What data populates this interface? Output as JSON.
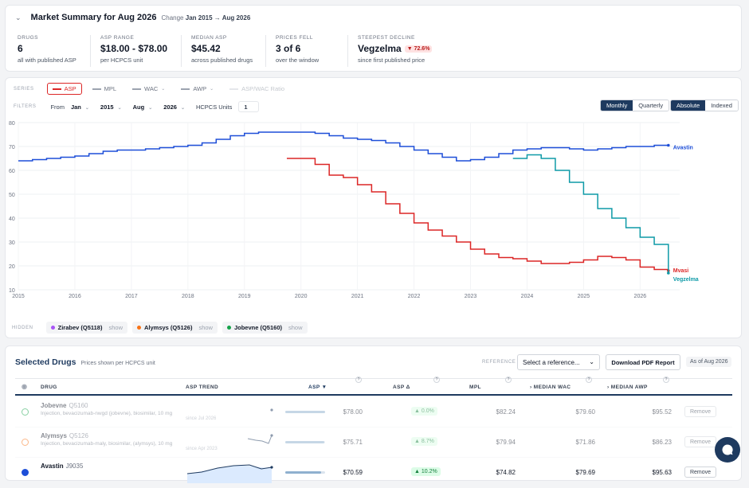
{
  "summary": {
    "title": "Market Summary for Aug 2026",
    "change_prefix": "Change",
    "change_range": "Jan 2015 → Aug 2026",
    "stats": [
      {
        "label": "DRUGS",
        "value": "6",
        "sub": "all with published ASP"
      },
      {
        "label": "ASP RANGE",
        "value": "$18.00 - $78.00",
        "sub": "per HCPCS unit"
      },
      {
        "label": "MEDIAN ASP",
        "value": "$45.42",
        "sub": "across published drugs"
      },
      {
        "label": "PRICES FELL",
        "value": "3 of 6",
        "sub": "over the window"
      },
      {
        "label": "STEEPEST DECLINE",
        "value": "Vegzelma",
        "badge": "▼ 72.6%",
        "sub": "since first published price"
      }
    ]
  },
  "series_bar": {
    "label": "SERIES",
    "items": [
      {
        "label": "ASP",
        "color": "#dc2626",
        "active": true
      },
      {
        "label": "MPL",
        "color": "#9ca3af",
        "active": false
      },
      {
        "label": "WAC",
        "color": "#9ca3af",
        "active": false
      },
      {
        "label": "AWP",
        "color": "#9ca3af",
        "active": false
      },
      {
        "label": "ASP/WAC Ratio",
        "color": "#d1d5db",
        "active": false
      }
    ]
  },
  "filters": {
    "label": "FILTERS",
    "from_label": "From",
    "from_month": "Jan",
    "from_year": "2015",
    "to_month": "Aug",
    "to_year": "2026",
    "units_label": "HCPCS Units",
    "units_value": "1",
    "granularity": [
      "Monthly",
      "Quarterly"
    ],
    "mode": [
      "Absolute",
      "Indexed"
    ]
  },
  "hidden": {
    "label": "HIDDEN",
    "items": [
      {
        "label": "Zirabev (Q5118)",
        "color": "#a855f7",
        "action": "show"
      },
      {
        "label": "Alymsys (Q5126)",
        "color": "#f97316",
        "action": "show"
      },
      {
        "label": "Jobevne (Q5160)",
        "color": "#16a34a",
        "action": "show"
      }
    ]
  },
  "chart_data": {
    "type": "line",
    "yticks": [
      10,
      20,
      30,
      40,
      50,
      60,
      70,
      80
    ],
    "ylim": [
      10,
      80
    ],
    "xticks": [
      "2015",
      "2016",
      "2017",
      "2018",
      "2019",
      "2020",
      "2021",
      "2022",
      "2023",
      "2024",
      "2025",
      "2026"
    ],
    "xlim": [
      2015.0,
      2026.7
    ],
    "grid": true,
    "series": [
      {
        "name": "Avastin",
        "color": "#1d4ed8",
        "x": [
          2015.0,
          2015.25,
          2015.5,
          2015.75,
          2016.0,
          2016.25,
          2016.5,
          2016.75,
          2017.0,
          2017.25,
          2017.5,
          2017.75,
          2018.0,
          2018.25,
          2018.5,
          2018.75,
          2019.0,
          2019.25,
          2019.5,
          2019.75,
          2020.0,
          2020.25,
          2020.5,
          2020.75,
          2021.0,
          2021.25,
          2021.5,
          2021.75,
          2022.0,
          2022.25,
          2022.5,
          2022.75,
          2023.0,
          2023.25,
          2023.5,
          2023.75,
          2024.0,
          2024.25,
          2024.5,
          2024.75,
          2025.0,
          2025.25,
          2025.5,
          2025.75,
          2026.0,
          2026.25,
          2026.5
        ],
        "y": [
          64,
          64.5,
          65,
          65.5,
          66,
          67,
          68,
          68.5,
          68.5,
          69,
          69.5,
          70,
          70.5,
          71.5,
          73,
          74.5,
          75.5,
          76,
          76,
          76,
          76,
          75.5,
          74.5,
          73.5,
          73,
          72.5,
          71.5,
          70,
          68.5,
          67,
          65.5,
          64,
          64.5,
          65.5,
          67,
          68.5,
          69,
          69.5,
          69.5,
          69,
          68.5,
          69,
          69.5,
          70,
          70,
          70.5,
          70.5
        ]
      },
      {
        "name": "Mvasi",
        "color": "#dc2626",
        "x": [
          2019.75,
          2020.0,
          2020.25,
          2020.5,
          2020.75,
          2021.0,
          2021.25,
          2021.5,
          2021.75,
          2022.0,
          2022.25,
          2022.5,
          2022.75,
          2023.0,
          2023.25,
          2023.5,
          2023.75,
          2024.0,
          2024.25,
          2024.5,
          2024.75,
          2025.0,
          2025.25,
          2025.5,
          2025.75,
          2026.0,
          2026.25,
          2026.5
        ],
        "y": [
          65,
          65,
          62.5,
          58,
          57,
          54,
          51,
          46,
          42,
          38,
          35,
          32.5,
          30,
          27,
          25,
          23.5,
          23,
          22,
          21,
          21,
          21.5,
          22.5,
          24,
          23.5,
          22.5,
          19.5,
          18.5,
          18
        ]
      },
      {
        "name": "Vegzelma",
        "color": "#0e9aa7",
        "x": [
          2023.75,
          2024.0,
          2024.25,
          2024.5,
          2024.75,
          2025.0,
          2025.25,
          2025.5,
          2025.75,
          2026.0,
          2026.25,
          2026.5
        ],
        "y": [
          65,
          66.5,
          65,
          60,
          55,
          50,
          44,
          40,
          36,
          32,
          29,
          17
        ]
      }
    ],
    "end_labels": [
      "Avastin",
      "Mvasi",
      "Vegzelma"
    ]
  },
  "table": {
    "title": "Selected Drugs",
    "subtitle": "Prices shown per HCPCS unit",
    "reference_label": "REFERENCE",
    "reference_placeholder": "Select a reference...",
    "download_label": "Download PDF Report",
    "asof": "As of Aug 2026",
    "columns": [
      "DRUG",
      "ASP TREND",
      "ASP ▼",
      "ASP Δ",
      "MPL",
      "MEDIAN WAC",
      "MEDIAN AWP"
    ],
    "rows": [
      {
        "name": "Jobevne",
        "code": "Q5160",
        "desc": "Injection, bevacizumab-nwgd (jobevne), biosimilar, 10 mg",
        "since": "since Jul 2026",
        "asp": "$78.00",
        "delta": "▲ 0.0%",
        "mpl": "$82.24",
        "wac": "$79.60",
        "awp": "$95.52",
        "radio": "#16a34a",
        "bar": 1.0,
        "faded": true,
        "remove": "Remove"
      },
      {
        "name": "Alymsys",
        "code": "Q5126",
        "desc": "Injection, bevacizumab-maly, biosimilar, (alymsys), 10 mg",
        "since": "since Apr 2023",
        "asp": "$75.71",
        "delta": "▲ 8.7%",
        "mpl": "$79.94",
        "wac": "$71.86",
        "awp": "$86.23",
        "radio": "#f97316",
        "bar": 0.97,
        "faded": true,
        "remove": "Remove"
      },
      {
        "name": "Avastin",
        "code": "J9035",
        "desc": "",
        "since": "",
        "asp": "$70.59",
        "delta": "▲ 10.2%",
        "mpl": "$74.82",
        "wac": "$79.69",
        "awp": "$95.63",
        "radio": "#1d4ed8",
        "bar": 0.9,
        "faded": false,
        "remove": "Remove"
      }
    ]
  }
}
